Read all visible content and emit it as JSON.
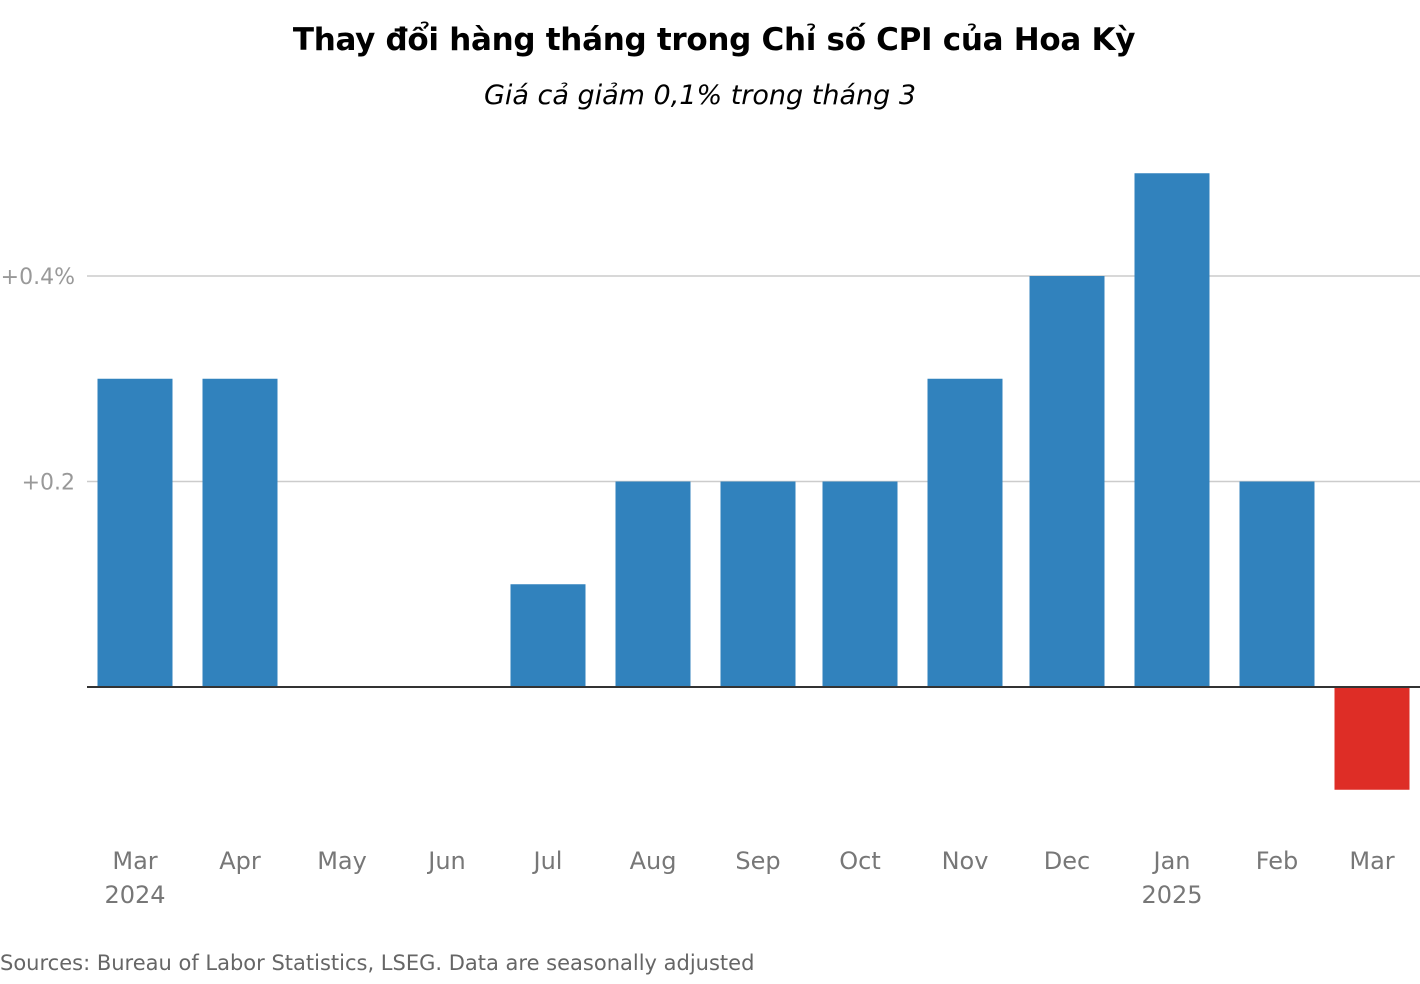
{
  "chart_data": {
    "type": "bar",
    "title": "Thay đổi hàng tháng trong Chỉ số CPI của Hoa Kỳ",
    "subtitle": "Giá cả giảm 0,1% trong tháng 3",
    "categories": [
      "Mar",
      "Apr",
      "May",
      "Jun",
      "Jul",
      "Aug",
      "Sep",
      "Oct",
      "Nov",
      "Dec",
      "Jan",
      "Feb",
      "Mar"
    ],
    "year_labels": [
      "2024",
      "",
      "",
      "",
      "",
      "",
      "",
      "",
      "",
      "",
      "2025",
      "",
      ""
    ],
    "values": [
      0.3,
      0.3,
      0.0,
      0.0,
      0.1,
      0.2,
      0.2,
      0.2,
      0.3,
      0.4,
      0.5,
      0.2,
      -0.1
    ],
    "y_ticks": [
      {
        "value": 0.2,
        "label": "+0.2"
      },
      {
        "value": 0.4,
        "label": "+0.4%"
      }
    ],
    "ylim": [
      -0.1,
      0.5
    ],
    "xlabel": "",
    "ylabel": "",
    "grid": true,
    "colors": {
      "positive": "#3182bd",
      "negative": "#de2d26",
      "grid": "#cccccc",
      "baseline": "#333333",
      "tick_label": "#999999",
      "category_label": "#777777"
    },
    "source": "Sources: Bureau of Labor Statistics, LSEG. Data are seasonally adjusted"
  }
}
